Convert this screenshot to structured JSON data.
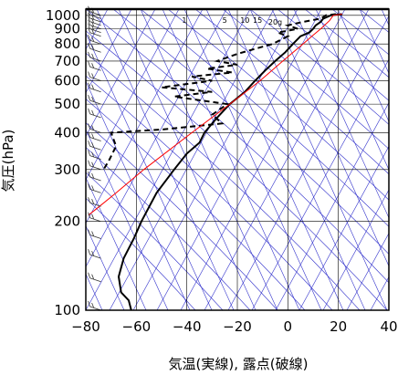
{
  "chart_data": {
    "type": "line",
    "subtype": "skew-T log-P thermodynamic diagram",
    "xlabel": "気温(実線), 露点(破線)",
    "ylabel": "気圧(hPa)",
    "xlim": [
      -80,
      40
    ],
    "ylim_hpa": [
      1050,
      100
    ],
    "y_scale": "log",
    "x_ticks": [
      -80,
      -60,
      -40,
      -20,
      0,
      20,
      40
    ],
    "x_tick_labels": [
      "−80",
      "−60",
      "−40",
      "−20",
      "0",
      "20",
      "40"
    ],
    "y_ticks": [
      100,
      200,
      300,
      400,
      500,
      600,
      700,
      800,
      900,
      1000
    ],
    "y_tick_labels": [
      "100",
      "200",
      "300",
      "400",
      "500",
      "600",
      "700",
      "800",
      "900",
      "1000"
    ],
    "grid": true,
    "mixing_ratio_labels": [
      "1",
      "5",
      "10",
      "15",
      "20g"
    ],
    "colors": {
      "temperature": "#000000",
      "dewpoint": "#000000",
      "parcel": "#ff0000",
      "background_lines": "#3333cc",
      "grid": "#000000",
      "wind_barbs": "#333333"
    },
    "series": [
      {
        "name": "気温",
        "style": "solid",
        "points": [
          {
            "p": 1010,
            "t": 21.5
          },
          {
            "p": 1000,
            "t": 17
          },
          {
            "p": 975,
            "t": 14
          },
          {
            "p": 950,
            "t": 13
          },
          {
            "p": 925,
            "t": 11
          },
          {
            "p": 900,
            "t": 10
          },
          {
            "p": 875,
            "t": 8.5
          },
          {
            "p": 850,
            "t": 5
          },
          {
            "p": 800,
            "t": 2
          },
          {
            "p": 750,
            "t": -1
          },
          {
            "p": 700,
            "t": -5
          },
          {
            "p": 650,
            "t": -9
          },
          {
            "p": 600,
            "t": -13
          },
          {
            "p": 550,
            "t": -17
          },
          {
            "p": 500,
            "t": -23
          },
          {
            "p": 450,
            "t": -28
          },
          {
            "p": 400,
            "t": -33
          },
          {
            "p": 370,
            "t": -35
          },
          {
            "p": 340,
            "t": -40
          },
          {
            "p": 300,
            "t": -45
          },
          {
            "p": 250,
            "t": -52
          },
          {
            "p": 200,
            "t": -58
          },
          {
            "p": 175,
            "t": -61
          },
          {
            "p": 150,
            "t": -65
          },
          {
            "p": 130,
            "t": -67
          },
          {
            "p": 115,
            "t": -66
          },
          {
            "p": 108,
            "t": -63
          },
          {
            "p": 100,
            "t": -62
          }
        ]
      },
      {
        "name": "露点",
        "style": "dashed",
        "points": [
          {
            "p": 1010,
            "t": 19
          },
          {
            "p": 1000,
            "t": 15
          },
          {
            "p": 975,
            "t": 13
          },
          {
            "p": 950,
            "t": 6
          },
          {
            "p": 925,
            "t": 0
          },
          {
            "p": 900,
            "t": 4
          },
          {
            "p": 875,
            "t": -4
          },
          {
            "p": 850,
            "t": 0
          },
          {
            "p": 800,
            "t": -6
          },
          {
            "p": 770,
            "t": -13
          },
          {
            "p": 740,
            "t": -20
          },
          {
            "p": 700,
            "t": -28
          },
          {
            "p": 680,
            "t": -20
          },
          {
            "p": 660,
            "t": -32
          },
          {
            "p": 640,
            "t": -22
          },
          {
            "p": 620,
            "t": -38
          },
          {
            "p": 600,
            "t": -30
          },
          {
            "p": 570,
            "t": -50
          },
          {
            "p": 550,
            "t": -30
          },
          {
            "p": 530,
            "t": -45
          },
          {
            "p": 500,
            "t": -24
          },
          {
            "p": 460,
            "t": -30
          },
          {
            "p": 430,
            "t": -26
          },
          {
            "p": 410,
            "t": -50
          },
          {
            "p": 400,
            "t": -70
          },
          {
            "p": 360,
            "t": -68
          },
          {
            "p": 320,
            "t": -71
          },
          {
            "p": 300,
            "t": -73
          }
        ]
      },
      {
        "name": "",
        "style": "solid-red",
        "points": [
          {
            "p": 1010,
            "t": 21.5
          },
          {
            "p": 1000,
            "t": 18
          },
          {
            "p": 960,
            "t": 16.5
          },
          {
            "p": 900,
            "t": 13
          },
          {
            "p": 850,
            "t": 9.5
          },
          {
            "p": 800,
            "t": 6
          },
          {
            "p": 700,
            "t": -2
          },
          {
            "p": 600,
            "t": -11
          },
          {
            "p": 500,
            "t": -23
          },
          {
            "p": 400,
            "t": -38
          },
          {
            "p": 300,
            "t": -57
          },
          {
            "p": 250,
            "t": -68
          },
          {
            "p": 220,
            "t": -76
          },
          {
            "p": 210,
            "t": -79
          }
        ]
      }
    ],
    "wind_barb_levels_hpa": [
      1000,
      975,
      950,
      925,
      900,
      875,
      850,
      800,
      750,
      700,
      650,
      600,
      550,
      500,
      450,
      400,
      375,
      350,
      325,
      300,
      275,
      250,
      225,
      200,
      175,
      150,
      125,
      100
    ]
  }
}
